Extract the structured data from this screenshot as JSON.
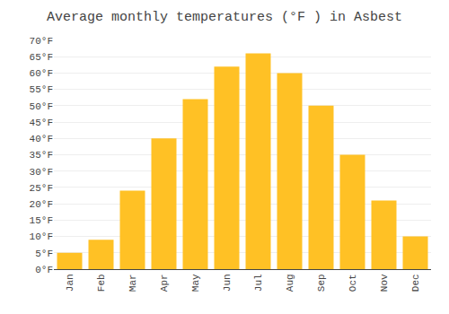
{
  "chart_data": {
    "type": "bar",
    "title": "Average monthly temperatures (°F ) in Asbest",
    "categories": [
      "Jan",
      "Feb",
      "Mar",
      "Apr",
      "May",
      "Jun",
      "Jul",
      "Aug",
      "Sep",
      "Oct",
      "Nov",
      "Dec"
    ],
    "values": [
      5,
      9,
      24,
      40,
      52,
      62,
      66,
      60,
      50,
      35,
      21,
      10
    ],
    "color": "#FFC125",
    "ylim": [
      0,
      70
    ],
    "yticks": [
      {
        "value": 0,
        "label": "0°F"
      },
      {
        "value": 5,
        "label": "5°F"
      },
      {
        "value": 10,
        "label": "10°F"
      },
      {
        "value": 15,
        "label": "15°F"
      },
      {
        "value": 20,
        "label": "20°F"
      },
      {
        "value": 25,
        "label": "25°F"
      },
      {
        "value": 30,
        "label": "30°F"
      },
      {
        "value": 35,
        "label": "35°F"
      },
      {
        "value": 40,
        "label": "40°F"
      },
      {
        "value": 45,
        "label": "45°F"
      },
      {
        "value": 50,
        "label": "50°F"
      },
      {
        "value": 55,
        "label": "55°F"
      },
      {
        "value": 60,
        "label": "60°F"
      },
      {
        "value": 65,
        "label": "65°F"
      },
      {
        "value": 70,
        "label": "70°F"
      }
    ],
    "grid": true
  }
}
